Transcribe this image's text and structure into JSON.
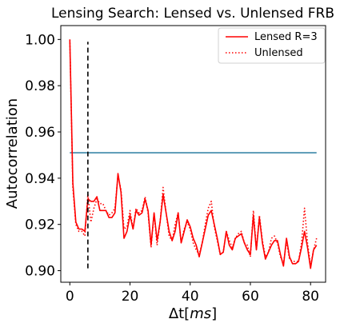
{
  "chart_data": {
    "type": "line",
    "title": "Lensing Search: Lensed vs. Unlensed FRB",
    "xlabel_prefix": "Δt[",
    "xlabel_unit": "ms",
    "xlabel_suffix": "]",
    "ylabel": "Autocorrelation",
    "xlim": [
      -3,
      85
    ],
    "ylim": [
      0.895,
      1.006
    ],
    "xticks": [
      0,
      20,
      40,
      60,
      80
    ],
    "yticks": [
      0.9,
      0.92,
      0.94,
      0.96,
      0.98,
      1.0
    ],
    "ytick_labels": [
      "0.90",
      "0.92",
      "0.94",
      "0.96",
      "0.98",
      "1.00"
    ],
    "legend_position": "top-right",
    "threshold": {
      "y": 0.951,
      "x_start": 0,
      "x_end": 82,
      "color": "#3b87a8"
    },
    "marker_line": {
      "x": 6,
      "y_start": 0.901,
      "y_end": 0.999,
      "color": "#000000",
      "style": "dashed"
    },
    "series": [
      {
        "name": "Lensed R=3",
        "color": "#ff0000",
        "style": "solid",
        "x": [
          0,
          1,
          2,
          3,
          4,
          5,
          6,
          7,
          8,
          9,
          10,
          11,
          12,
          13,
          14,
          15,
          16,
          17,
          18,
          19,
          20,
          21,
          22,
          23,
          24,
          25,
          26,
          27,
          28,
          29,
          30,
          31,
          32,
          33,
          34,
          35,
          36,
          37,
          38,
          39,
          40,
          41,
          42,
          43,
          44,
          45,
          46,
          47,
          48,
          49,
          50,
          51,
          52,
          53,
          54,
          55,
          56,
          57,
          58,
          59,
          60,
          61,
          62,
          63,
          64,
          65,
          66,
          67,
          68,
          69,
          70,
          71,
          72,
          73,
          74,
          75,
          76,
          77,
          78,
          79,
          80,
          81,
          82
        ],
        "y": [
          1.0,
          0.938,
          0.921,
          0.918,
          0.918,
          0.917,
          0.931,
          0.93,
          0.93,
          0.932,
          0.926,
          0.926,
          0.926,
          0.923,
          0.923,
          0.925,
          0.942,
          0.934,
          0.914,
          0.917,
          0.924,
          0.918,
          0.926,
          0.924,
          0.925,
          0.931,
          0.926,
          0.911,
          0.925,
          0.913,
          0.921,
          0.933,
          0.925,
          0.917,
          0.913,
          0.917,
          0.925,
          0.912,
          0.917,
          0.922,
          0.919,
          0.914,
          0.911,
          0.906,
          0.912,
          0.918,
          0.924,
          0.926,
          0.92,
          0.914,
          0.907,
          0.908,
          0.917,
          0.911,
          0.909,
          0.914,
          0.915,
          0.916,
          0.912,
          0.909,
          0.907,
          0.924,
          0.909,
          0.923,
          0.912,
          0.905,
          0.908,
          0.911,
          0.913,
          0.913,
          0.907,
          0.902,
          0.914,
          0.906,
          0.903,
          0.903,
          0.904,
          0.91,
          0.917,
          0.91,
          0.901,
          0.909,
          0.911
        ]
      },
      {
        "name": "Unlensed",
        "color": "#ff0000",
        "style": "dotted",
        "x": [
          0,
          1,
          2,
          3,
          4,
          5,
          6,
          7,
          8,
          9,
          10,
          11,
          12,
          13,
          14,
          15,
          16,
          17,
          18,
          19,
          20,
          21,
          22,
          23,
          24,
          25,
          26,
          27,
          28,
          29,
          30,
          31,
          32,
          33,
          34,
          35,
          36,
          37,
          38,
          39,
          40,
          41,
          42,
          43,
          44,
          45,
          46,
          47,
          48,
          49,
          50,
          51,
          52,
          53,
          54,
          55,
          56,
          57,
          58,
          59,
          60,
          61,
          62,
          63,
          64,
          65,
          66,
          67,
          68,
          69,
          70,
          71,
          72,
          73,
          74,
          75,
          76,
          77,
          78,
          79,
          80,
          81,
          82
        ],
        "y": [
          1.0,
          0.936,
          0.92,
          0.917,
          0.917,
          0.915,
          0.933,
          0.921,
          0.927,
          0.931,
          0.929,
          0.929,
          0.926,
          0.924,
          0.925,
          0.927,
          0.941,
          0.935,
          0.918,
          0.919,
          0.926,
          0.918,
          0.927,
          0.925,
          0.926,
          0.932,
          0.925,
          0.91,
          0.925,
          0.911,
          0.921,
          0.936,
          0.925,
          0.915,
          0.913,
          0.92,
          0.925,
          0.912,
          0.918,
          0.921,
          0.918,
          0.912,
          0.909,
          0.907,
          0.912,
          0.92,
          0.927,
          0.93,
          0.919,
          0.913,
          0.907,
          0.908,
          0.917,
          0.913,
          0.91,
          0.914,
          0.916,
          0.917,
          0.912,
          0.911,
          0.906,
          0.926,
          0.909,
          0.924,
          0.913,
          0.906,
          0.908,
          0.914,
          0.915,
          0.912,
          0.906,
          0.903,
          0.913,
          0.905,
          0.904,
          0.904,
          0.904,
          0.912,
          0.927,
          0.912,
          0.902,
          0.909,
          0.914
        ]
      }
    ]
  }
}
